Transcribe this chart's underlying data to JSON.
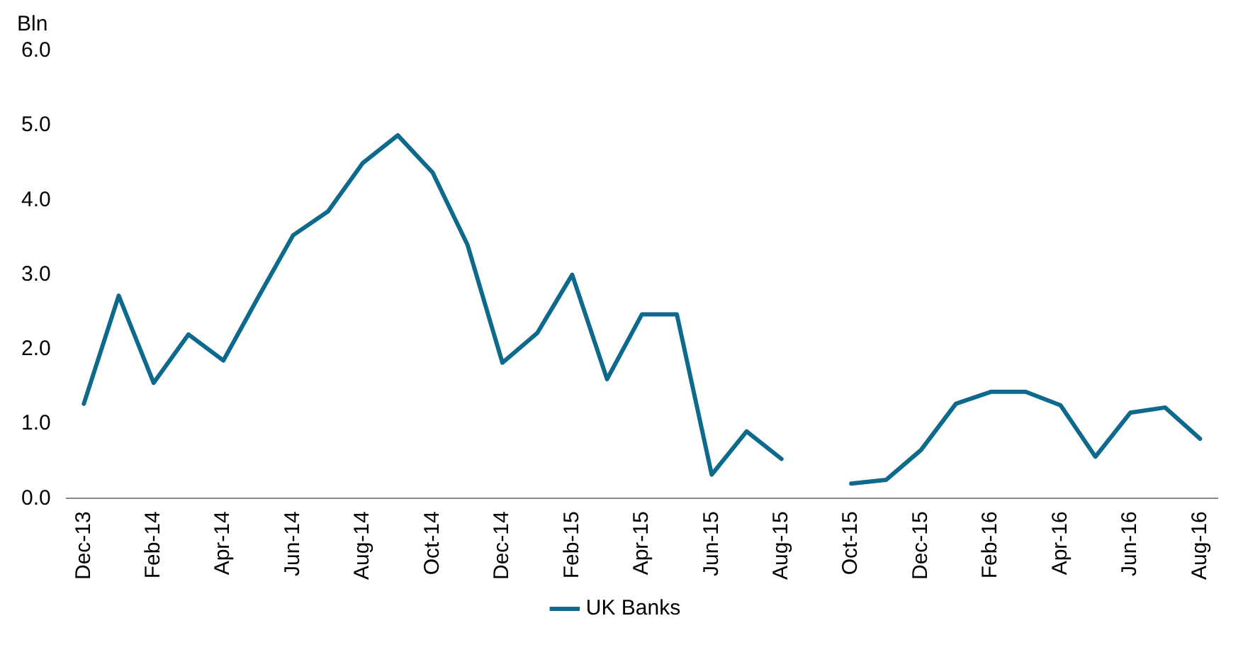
{
  "chart_data": {
    "type": "line",
    "ylabel": "Bln",
    "categories": [
      "Dec-13",
      null,
      "Feb-14",
      null,
      "Apr-14",
      null,
      "Jun-14",
      null,
      "Aug-14",
      null,
      "Oct-14",
      null,
      "Dec-14",
      null,
      "Feb-15",
      null,
      "Apr-15",
      null,
      "Jun-15",
      null,
      "Aug-15",
      null,
      "Oct-15",
      null,
      "Dec-15",
      null,
      "Feb-16",
      null,
      "Apr-16",
      null,
      "Jun-16",
      null,
      "Aug-16"
    ],
    "series": [
      {
        "name": "UK Banks",
        "color": "#0e6a8c",
        "values": [
          1.27,
          2.72,
          1.55,
          2.2,
          1.85,
          2.7,
          3.53,
          3.85,
          4.5,
          4.87,
          4.37,
          3.4,
          1.82,
          2.22,
          3.0,
          1.6,
          2.47,
          2.47,
          0.32,
          0.9,
          0.53,
          null,
          0.2,
          0.25,
          0.65,
          1.27,
          1.43,
          1.43,
          1.25,
          0.56,
          1.15,
          1.22,
          0.8
        ]
      }
    ],
    "ylim": [
      0,
      6
    ],
    "yticks": [
      {
        "value": 0,
        "label": "0.0"
      },
      {
        "value": 1,
        "label": "1.0"
      },
      {
        "value": 2,
        "label": "2.0"
      },
      {
        "value": 3,
        "label": "3.0"
      },
      {
        "value": 4,
        "label": "4.0"
      },
      {
        "value": 5,
        "label": "5.0"
      },
      {
        "value": 6,
        "label": "6.0"
      }
    ],
    "grid": false,
    "legend": "bottom",
    "marker": "none",
    "line_style": "solid"
  }
}
